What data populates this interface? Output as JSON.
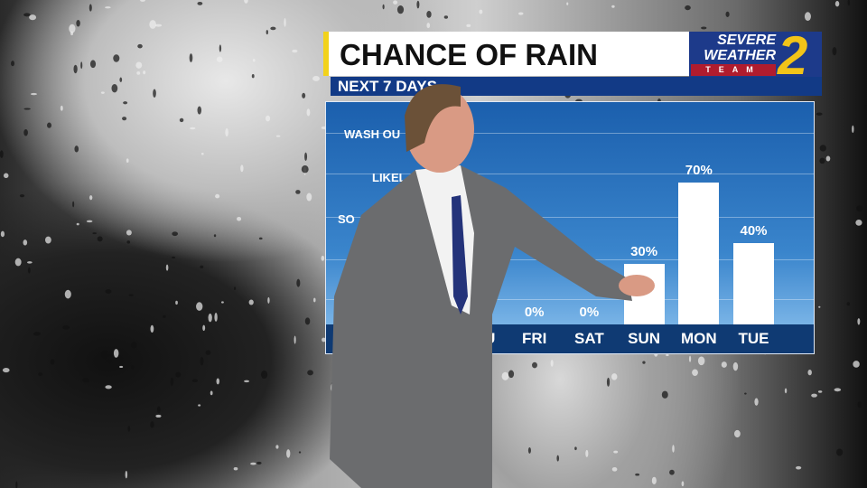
{
  "header": {
    "title": "CHANCE OF RAIN",
    "subtitle": "NEXT 7 DAYS"
  },
  "logo": {
    "line1": "SEVERE",
    "line2": "WEATHER",
    "line3": "TEAM",
    "number": "2"
  },
  "colors": {
    "accent": "#f2d21b",
    "header_blue": "#123a86",
    "panel_blue": "#1b5fad",
    "bar": "#ffffff",
    "logo_red": "#b01c2e"
  },
  "chart_data": {
    "type": "bar",
    "categories": [
      "THU",
      "FRI",
      "SAT",
      "SUN",
      "MON",
      "TUE"
    ],
    "values": [
      0,
      0,
      0,
      30,
      70,
      40
    ],
    "value_labels": [
      "0%",
      "0%",
      "0%",
      "30%",
      "70%",
      "40%"
    ],
    "ylabels_visible": [
      "WASH OU",
      "LIKEL",
      "SO"
    ],
    "ylim": [
      0,
      100
    ],
    "grid": true
  }
}
